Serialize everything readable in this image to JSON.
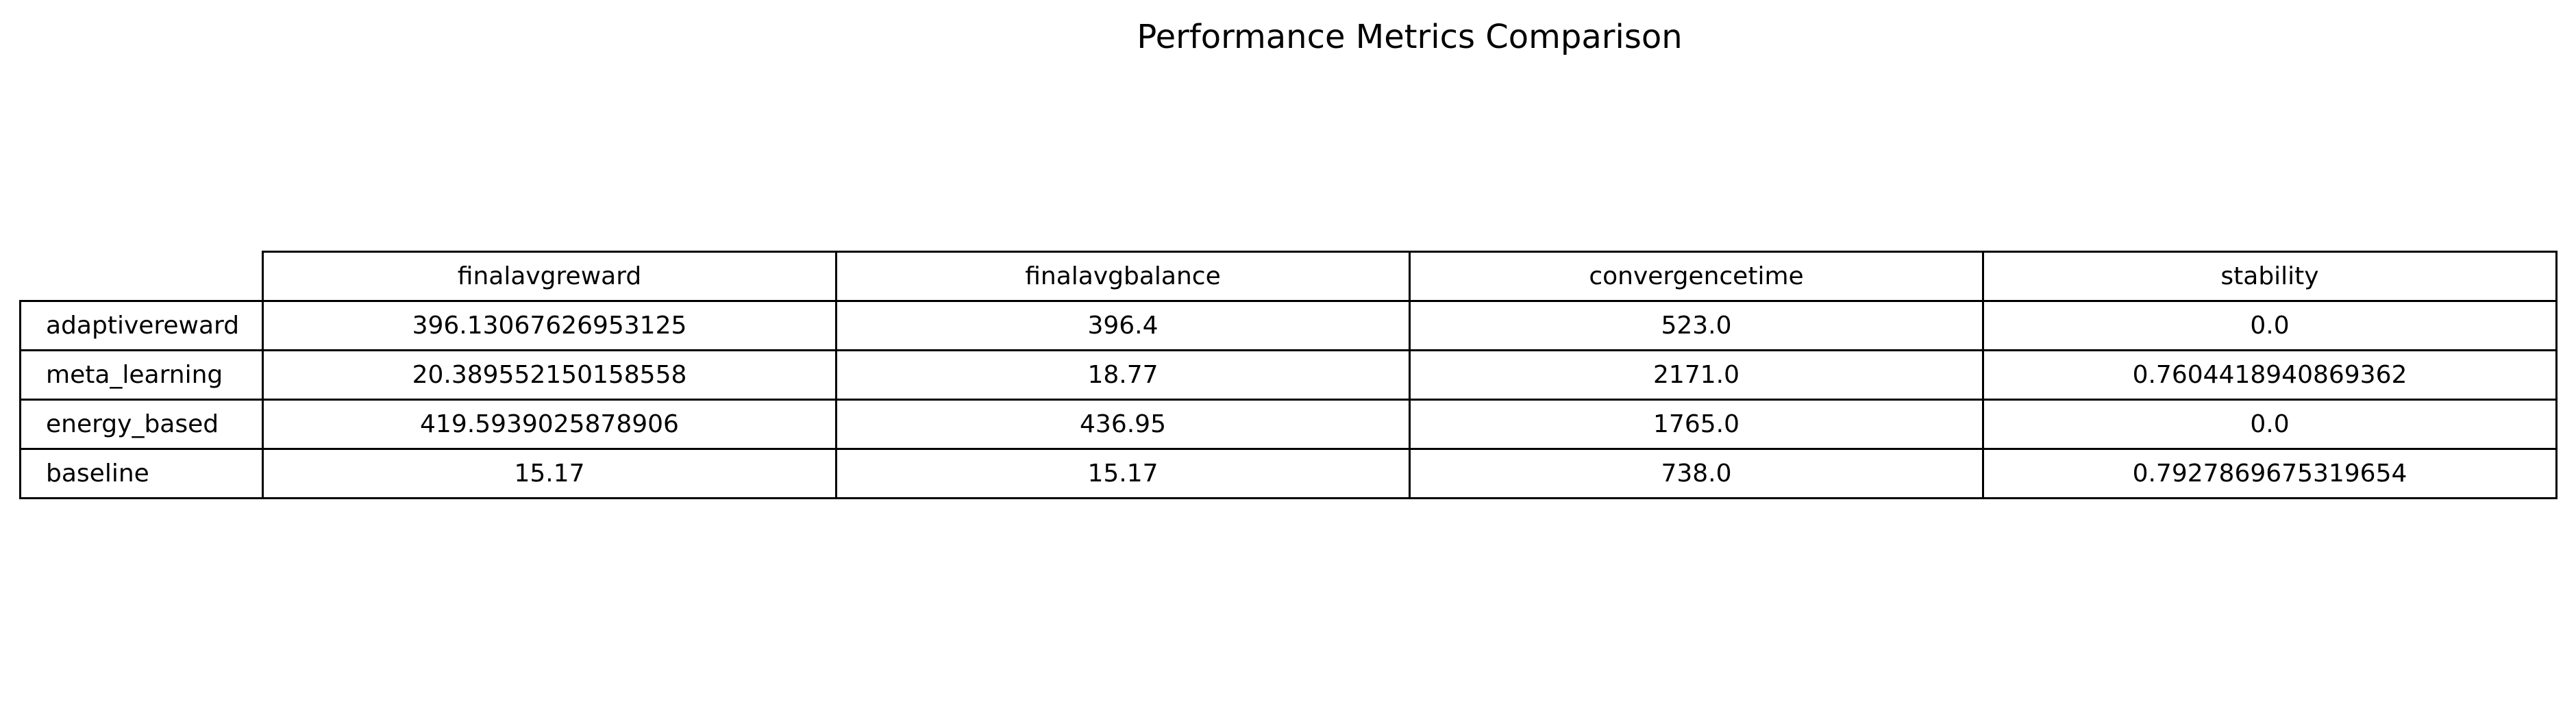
{
  "chart_data": {
    "type": "table",
    "title": "Performance Metrics Comparison",
    "columns": [
      "finalavgreward",
      "finalavgbalance",
      "convergencetime",
      "stability"
    ],
    "rows": [
      {
        "label": "adaptivereward",
        "values": [
          "396.13067626953125",
          "396.4",
          "523.0",
          "0.0"
        ]
      },
      {
        "label": "meta_learning",
        "values": [
          "20.389552150158558",
          "18.77",
          "2171.0",
          "0.7604418940869362"
        ]
      },
      {
        "label": "energy_based",
        "values": [
          "419.5939025878906",
          "436.95",
          "1765.0",
          "0.0"
        ]
      },
      {
        "label": "baseline",
        "values": [
          "15.17",
          "15.17",
          "738.0",
          "0.7927869675319654"
        ]
      }
    ]
  }
}
